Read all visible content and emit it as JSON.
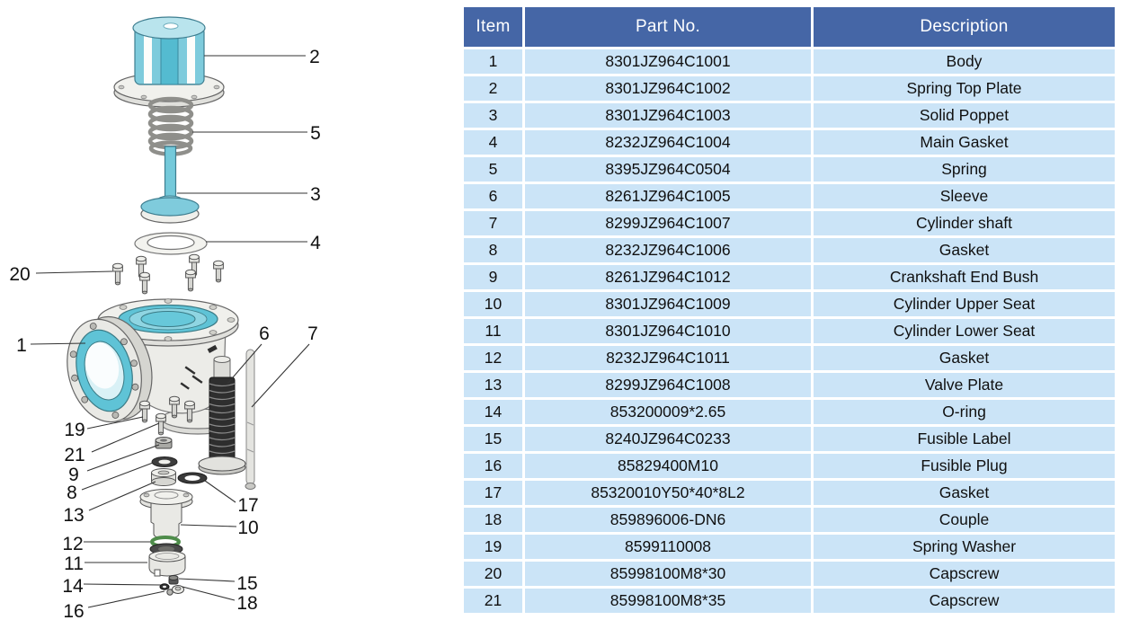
{
  "diagram": {
    "title": "exploded-valve-assembly",
    "callouts": [
      {
        "label": "1"
      },
      {
        "label": "2"
      },
      {
        "label": "3"
      },
      {
        "label": "4"
      },
      {
        "label": "5"
      },
      {
        "label": "6"
      },
      {
        "label": "7"
      },
      {
        "label": "8"
      },
      {
        "label": "9"
      },
      {
        "label": "10"
      },
      {
        "label": "11"
      },
      {
        "label": "12"
      },
      {
        "label": "13"
      },
      {
        "label": "14"
      },
      {
        "label": "15"
      },
      {
        "label": "16"
      },
      {
        "label": "17"
      },
      {
        "label": "18"
      },
      {
        "label": "19"
      },
      {
        "label": "20"
      },
      {
        "label": "21"
      }
    ]
  },
  "table": {
    "headers": [
      "Item",
      "Part No.",
      "Description"
    ],
    "rows": [
      {
        "item": "1",
        "part_no": "8301JZ964C1001",
        "description": "Body"
      },
      {
        "item": "2",
        "part_no": "8301JZ964C1002",
        "description": "Spring Top Plate"
      },
      {
        "item": "3",
        "part_no": "8301JZ964C1003",
        "description": "Solid Poppet"
      },
      {
        "item": "4",
        "part_no": "8232JZ964C1004",
        "description": "Main Gasket"
      },
      {
        "item": "5",
        "part_no": "8395JZ964C0504",
        "description": "Spring"
      },
      {
        "item": "6",
        "part_no": "8261JZ964C1005",
        "description": "Sleeve"
      },
      {
        "item": "7",
        "part_no": "8299JZ964C1007",
        "description": "Cylinder shaft"
      },
      {
        "item": "8",
        "part_no": "8232JZ964C1006",
        "description": "Gasket"
      },
      {
        "item": "9",
        "part_no": "8261JZ964C1012",
        "description": "Crankshaft End Bush"
      },
      {
        "item": "10",
        "part_no": "8301JZ964C1009",
        "description": "Cylinder Upper Seat"
      },
      {
        "item": "11",
        "part_no": "8301JZ964C1010",
        "description": "Cylinder Lower Seat"
      },
      {
        "item": "12",
        "part_no": "8232JZ964C1011",
        "description": "Gasket"
      },
      {
        "item": "13",
        "part_no": "8299JZ964C1008",
        "description": "Valve Plate"
      },
      {
        "item": "14",
        "part_no": "853200009*2.65",
        "description": "O-ring"
      },
      {
        "item": "15",
        "part_no": "8240JZ964C0233",
        "description": "Fusible Label"
      },
      {
        "item": "16",
        "part_no": "85829400M10",
        "description": "Fusible Plug"
      },
      {
        "item": "17",
        "part_no": "85320010Y50*40*8L2",
        "description": "Gasket"
      },
      {
        "item": "18",
        "part_no": "859896006-DN6",
        "description": "Couple"
      },
      {
        "item": "19",
        "part_no": "8599110008",
        "description": "Spring Washer"
      },
      {
        "item": "20",
        "part_no": "85998100M8*30",
        "description": "Capscrew"
      },
      {
        "item": "21",
        "part_no": "85998100M8*35",
        "description": "Capscrew"
      }
    ]
  },
  "colors": {
    "table_header_bg": "#4566A6",
    "table_row_bg": "#CBE4F7",
    "part_teal": "#5FC3D6",
    "part_teal_light": "#B9E4ED",
    "oring_green": "#4E8C4A",
    "sleeve_dark": "#2E2E2E"
  }
}
